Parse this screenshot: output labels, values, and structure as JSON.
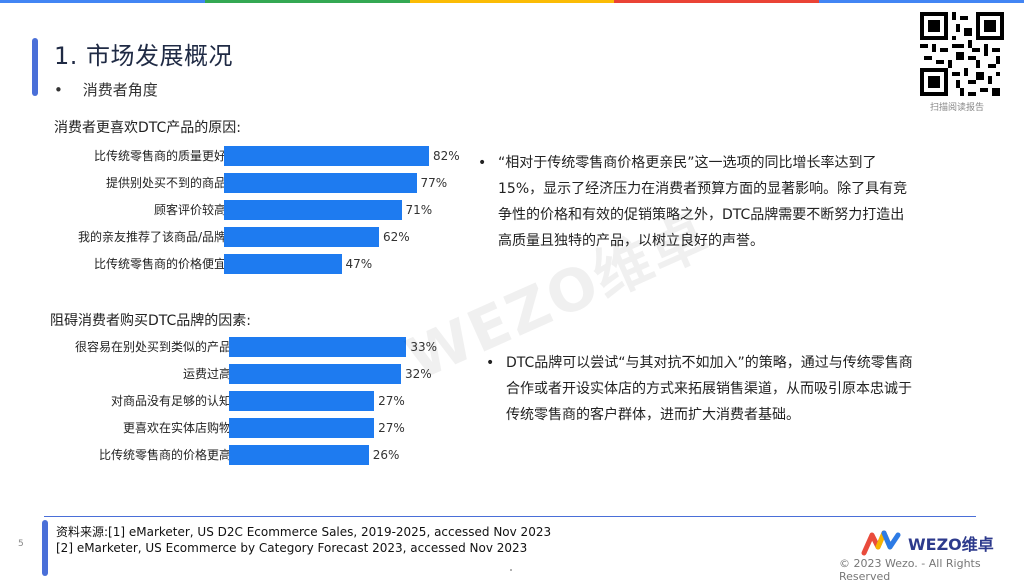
{
  "colors": {
    "top_bar": [
      "#4285f4",
      "#34a853",
      "#fbbc05",
      "#ea4335",
      "#4285f4"
    ],
    "accent": "#4a6fd8",
    "bar": "#1e7bf0"
  },
  "header": {
    "title": "1. 市场发展概况",
    "subtitle_bullet": "•",
    "subtitle": "消费者角度"
  },
  "qr": {
    "label": "扫描阅读报告"
  },
  "charts": {
    "reasons": {
      "title": "消费者更喜欢DTC产品的原因:"
    },
    "barriers": {
      "title": "阻碍消费者购买DTC品牌的因素:"
    }
  },
  "chart_data": [
    {
      "type": "bar",
      "orientation": "horizontal",
      "title": "消费者更喜欢DTC产品的原因:",
      "categories": [
        "比传统零售商的质量更好",
        "提供别处买不到的商品",
        "顾客评价较高",
        "我的亲友推荐了该商品/品牌",
        "比传统零售商的价格便宜"
      ],
      "values": [
        82,
        77,
        71,
        62,
        47
      ],
      "value_labels": [
        "82%",
        "77%",
        "71%",
        "62%",
        "47%"
      ],
      "xlim": [
        0,
        100
      ]
    },
    {
      "type": "bar",
      "orientation": "horizontal",
      "title": "阻碍消费者购买DTC品牌的因素:",
      "categories": [
        "很容易在别处买到类似的产品",
        "运费过高",
        "对商品没有足够的认知",
        "更喜欢在实体店购物",
        "比传统零售商的价格更高"
      ],
      "values": [
        33,
        32,
        27,
        27,
        26
      ],
      "value_labels": [
        "33%",
        "32%",
        "27%",
        "27%",
        "26%"
      ],
      "xlim": [
        0,
        40
      ]
    }
  ],
  "notes": [
    {
      "bullet": "•",
      "text": "“相对于传统零售商价格更亲民”这一选项的同比增长率达到了15%，显示了经济压力在消费者预算方面的显著影响。除了具有竞争性的价格和有效的促销策略之外，DTC品牌需要不断努力打造出高质量且独特的产品，以树立良好的声誉。"
    },
    {
      "bullet": "•",
      "text": "DTC品牌可以尝试“与其对抗不如加入”的策略，通过与传统零售商合作或者开设实体店的方式来拓展销售渠道，从而吸引原本忠诚于传统零售商的客户群体，进而扩大消费者基础。"
    }
  ],
  "watermark": "WEZO维卓",
  "footer": {
    "page_number": "5",
    "source_line1": "资料来源:[1] eMarketer, US D2C Ecommerce Sales, 2019-2025, accessed Nov 2023",
    "source_line2": "[2] eMarketer, US Ecommerce by Category Forecast 2023, accessed Nov 2023",
    "logo_text": "WEZO维卓",
    "copyright": "© 2023 Wezo. - All Rights Reserved"
  }
}
